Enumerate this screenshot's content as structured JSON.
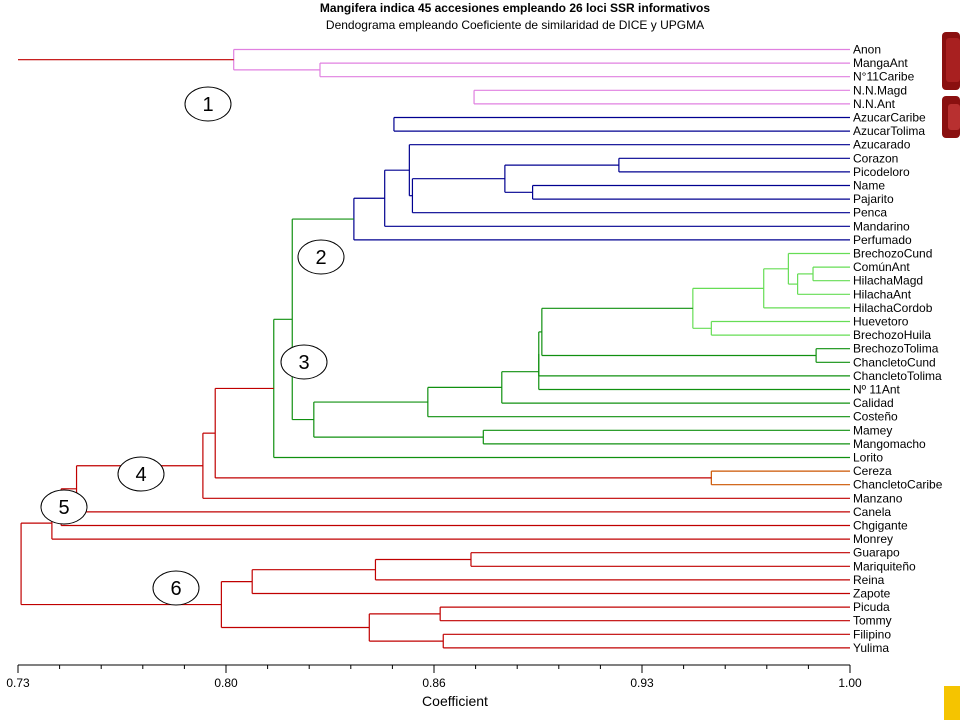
{
  "header": {
    "title": "Mangifera indica 45 accesiones empleando 26 loci SSR informativos",
    "subtitle": "Dendograma empleando Coeficiente de similaridad de DICE y UPGMA"
  },
  "colors": {
    "cluster_1": "#e080e0",
    "cluster_2": "#000090",
    "cluster_3_light": "#66dd55",
    "cluster_3": "#109010",
    "cluster_4": "#cc5500",
    "cluster_5": "#e09020",
    "cluster_6": "#c00000",
    "deco_dark_red": "#8a1010",
    "deco_gold": "#f5c400"
  },
  "chart_data": {
    "type": "dendrogram",
    "title": "Mangifera indica 45 accesiones empleando 26 loci SSR informativos",
    "subtitle": "Dendograma empleando Coeficiente de similaridad de DICE y UPGMA",
    "xlabel": "Coefficient",
    "xlim": [
      0.73,
      1.0
    ],
    "ticks": [
      "0.73",
      "0.80",
      "0.86",
      "0.93",
      "1.00"
    ],
    "leaves": [
      "Anon",
      "MangaAnt",
      "N°11Caribe",
      "N.N.Magd",
      "N.N.Ant",
      "AzucarCaribe",
      "AzucarTolima",
      "Azucarado",
      "Corazon",
      "Picodeloro",
      "Name",
      "Pajarito",
      "Penca",
      "Mandarino",
      "Perfumado",
      "BrechozoCund",
      "ComúnAnt",
      "HilachaMagd",
      "HilachaAnt",
      "HilachaCordob",
      "Huevetoro",
      "BrechozoHuila",
      "BrechozoTolima",
      "ChancletoCund",
      "ChancletoTolima",
      "Nº 11Ant",
      "Calidad",
      "Costeño",
      "Mamey",
      "Mangomacho",
      "Lorito",
      "Cereza",
      "ChancletoCaribe",
      "Manzano",
      "Canela",
      "Chgigante",
      "Monrey",
      "Guarapo",
      "Mariquiteño",
      "Reina",
      "Zapote",
      "Picuda",
      "Tommy",
      "Filipino",
      "Yulima"
    ],
    "cluster_labels": [
      "1",
      "2",
      "3",
      "4",
      "5",
      "6"
    ],
    "merges": [
      {
        "a": 0,
        "b": 1,
        "sim": 0.8
      },
      {
        "a": 1,
        "b": 2,
        "sim": 0.828
      },
      {
        "a": 3,
        "b": 4,
        "sim": 0.878
      },
      {
        "a": 5,
        "b": 6,
        "sim": 0.852
      },
      {
        "a": 7,
        "b": 8,
        "sim": 0.857
      },
      {
        "a": 8,
        "b": 9,
        "sim": 0.925
      },
      {
        "a": 9,
        "b": 10,
        "sim": 0.888
      },
      {
        "a": 10,
        "b": 11,
        "sim": 0.897
      },
      {
        "a": 11,
        "b": 12,
        "sim": 0.858
      },
      {
        "a": 12,
        "b": 13,
        "sim": 0.849
      },
      {
        "a": 13,
        "b": 14,
        "sim": 0.839
      },
      {
        "a": 14,
        "b": 15,
        "sim": 0.819
      },
      {
        "a": 15,
        "b": 16,
        "sim": 0.98
      },
      {
        "a": 16,
        "b": 17,
        "sim": 0.988
      },
      {
        "a": 17,
        "b": 18,
        "sim": 0.983
      },
      {
        "a": 18,
        "b": 19,
        "sim": 0.972
      },
      {
        "a": 19,
        "b": 20,
        "sim": 0.949
      },
      {
        "a": 20,
        "b": 21,
        "sim": 0.955
      },
      {
        "a": 21,
        "b": 22,
        "sim": 0.9
      },
      {
        "a": 22,
        "b": 23,
        "sim": 0.989
      },
      {
        "a": 23,
        "b": 24,
        "sim": 0.899
      },
      {
        "a": 24,
        "b": 25,
        "sim": 0.899
      },
      {
        "a": 25,
        "b": 26,
        "sim": 0.887
      },
      {
        "a": 26,
        "b": 27,
        "sim": 0.863
      },
      {
        "a": 27,
        "b": 28,
        "sim": 0.826
      },
      {
        "a": 28,
        "b": 29,
        "sim": 0.881
      },
      {
        "a": 29,
        "b": 30,
        "sim": 0.813
      },
      {
        "a": 30,
        "b": 31,
        "sim": 0.794
      },
      {
        "a": 31,
        "b": 32,
        "sim": 0.955
      },
      {
        "a": 32,
        "b": 33,
        "sim": 0.79
      },
      {
        "a": 33,
        "b": 34,
        "sim": 0.749
      },
      {
        "a": 34,
        "b": 35,
        "sim": 0.744
      },
      {
        "a": 35,
        "b": 36,
        "sim": 0.741
      },
      {
        "a": 36,
        "b": 37,
        "sim": 0.731
      },
      {
        "a": 37,
        "b": 38,
        "sim": 0.877
      },
      {
        "a": 38,
        "b": 39,
        "sim": 0.846
      },
      {
        "a": 39,
        "b": 40,
        "sim": 0.806
      },
      {
        "a": 40,
        "b": 41,
        "sim": 0.796
      },
      {
        "a": 41,
        "b": 42,
        "sim": 0.867
      },
      {
        "a": 42,
        "b": 43,
        "sim": 0.844
      },
      {
        "a": 43,
        "b": 44,
        "sim": 0.868
      }
    ]
  }
}
